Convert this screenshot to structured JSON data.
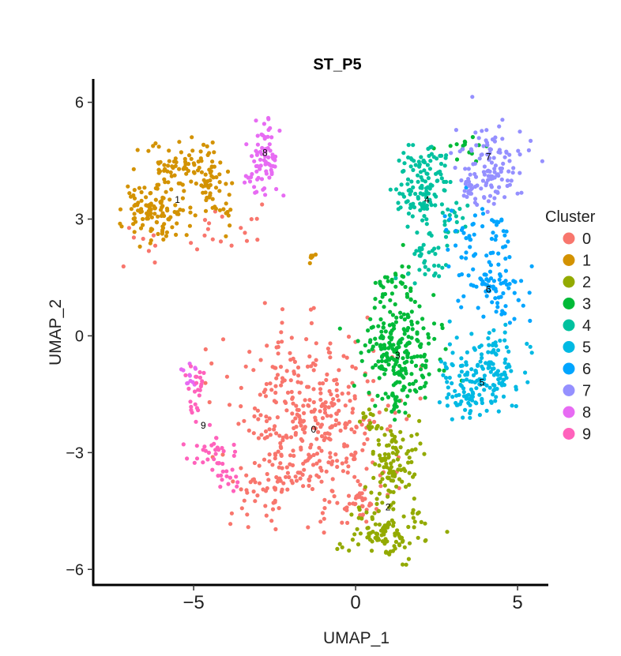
{
  "chart_data": {
    "type": "scatter",
    "title": "ST_P5",
    "xlabel": "UMAP_1",
    "ylabel": "UMAP_2",
    "xlim": [
      -8.1,
      5.9
    ],
    "ylim": [
      -6.4,
      6.6
    ],
    "x_ticks": [
      -5,
      0,
      5
    ],
    "y_ticks": [
      -6,
      -3,
      0,
      3,
      6
    ],
    "x_tick_labels": [
      "−5",
      "0",
      "5"
    ],
    "y_tick_labels": [
      "−6",
      "−3",
      "0",
      "3",
      "6"
    ],
    "grid": false,
    "legend": {
      "title": "Cluster",
      "position": "right"
    },
    "series": [
      {
        "name": "0",
        "color": "#F8766D",
        "label_pos": [
          -1.3,
          -2.4
        ],
        "regions": [
          {
            "cx": -1.5,
            "cy": -2.2,
            "sx": 1.2,
            "sy": 1.1,
            "n": 380
          },
          {
            "cx": 0.2,
            "cy": -4.3,
            "sx": 0.5,
            "sy": 0.3,
            "n": 40
          },
          {
            "cx": -2.8,
            "cy": -4.0,
            "sx": 0.5,
            "sy": 0.4,
            "n": 40
          },
          {
            "cx": -3.8,
            "cy": 2.7,
            "sx": 0.8,
            "sy": 0.3,
            "n": 18
          },
          {
            "cx": -6.5,
            "cy": 2.3,
            "sx": 0.3,
            "sy": 0.3,
            "n": 8
          }
        ]
      },
      {
        "name": "1",
        "color": "#D39200",
        "label_pos": [
          -5.5,
          3.5
        ],
        "regions": [
          {
            "cx": -6.5,
            "cy": 3.3,
            "sx": 0.4,
            "sy": 0.35,
            "n": 70
          },
          {
            "cx": -5.5,
            "cy": 4.3,
            "sx": 0.6,
            "sy": 0.35,
            "n": 70
          },
          {
            "cx": -4.5,
            "cy": 3.8,
            "sx": 0.4,
            "sy": 0.5,
            "n": 60
          },
          {
            "cx": -5.8,
            "cy": 3.0,
            "sx": 0.4,
            "sy": 0.3,
            "n": 35
          },
          {
            "cx": -1.2,
            "cy": 2.0,
            "sx": 0.15,
            "sy": 0.08,
            "n": 8
          }
        ]
      },
      {
        "name": "2",
        "color": "#93AA00",
        "label_pos": [
          1.0,
          -4.4
        ],
        "regions": [
          {
            "cx": 1.1,
            "cy": -3.3,
            "sx": 0.35,
            "sy": 0.55,
            "n": 100
          },
          {
            "cx": 0.9,
            "cy": -5.0,
            "sx": 0.6,
            "sy": 0.4,
            "n": 110
          },
          {
            "cx": 0.4,
            "cy": -2.2,
            "sx": 0.2,
            "sy": 0.3,
            "n": 18
          }
        ]
      },
      {
        "name": "3",
        "color": "#00BA38",
        "label_pos": [
          1.3,
          -0.5
        ],
        "regions": [
          {
            "cx": 1.4,
            "cy": -0.4,
            "sx": 0.6,
            "sy": 0.55,
            "n": 200
          },
          {
            "cx": 1.3,
            "cy": 1.2,
            "sx": 0.35,
            "sy": 0.4,
            "n": 40
          },
          {
            "cx": 1.3,
            "cy": -1.6,
            "sx": 0.25,
            "sy": 0.3,
            "n": 30
          },
          {
            "cx": 3.3,
            "cy": 4.9,
            "sx": 0.4,
            "sy": 0.2,
            "n": 15
          }
        ]
      },
      {
        "name": "4",
        "color": "#00C19F",
        "label_pos": [
          2.2,
          3.5
        ],
        "regions": [
          {
            "cx": 2.0,
            "cy": 3.6,
            "sx": 0.4,
            "sy": 0.35,
            "n": 80
          },
          {
            "cx": 2.2,
            "cy": 4.4,
            "sx": 0.35,
            "sy": 0.3,
            "n": 50
          },
          {
            "cx": 2.2,
            "cy": 2.0,
            "sx": 0.35,
            "sy": 0.4,
            "n": 40
          },
          {
            "cx": 3.0,
            "cy": 3.0,
            "sx": 0.25,
            "sy": 0.3,
            "n": 20
          }
        ]
      },
      {
        "name": "5",
        "color": "#00B9E3",
        "label_pos": [
          3.9,
          -1.2
        ],
        "regions": [
          {
            "cx": 4.0,
            "cy": -1.1,
            "sx": 0.7,
            "sy": 0.45,
            "n": 130
          },
          {
            "cx": 3.3,
            "cy": -1.5,
            "sx": 0.4,
            "sy": 0.3,
            "n": 30
          },
          {
            "cx": 4.5,
            "cy": -0.3,
            "sx": 0.4,
            "sy": 0.25,
            "n": 20
          }
        ]
      },
      {
        "name": "6",
        "color": "#00A5FF",
        "label_pos": [
          4.1,
          1.2
        ],
        "regions": [
          {
            "cx": 4.2,
            "cy": 1.2,
            "sx": 0.5,
            "sy": 0.45,
            "n": 80
          },
          {
            "cx": 3.5,
            "cy": 2.7,
            "sx": 0.4,
            "sy": 0.4,
            "n": 30
          },
          {
            "cx": 4.4,
            "cy": 2.6,
            "sx": 0.2,
            "sy": 0.5,
            "n": 20
          }
        ]
      },
      {
        "name": "7",
        "color": "#9590FF",
        "label_pos": [
          4.1,
          4.6
        ],
        "regions": [
          {
            "cx": 4.2,
            "cy": 4.4,
            "sx": 0.5,
            "sy": 0.5,
            "n": 110
          },
          {
            "cx": 3.6,
            "cy": 3.7,
            "sx": 0.25,
            "sy": 0.25,
            "n": 20
          }
        ]
      },
      {
        "name": "8",
        "color": "#E76BF3",
        "label_pos": [
          -2.8,
          4.7
        ],
        "regions": [
          {
            "cx": -2.8,
            "cy": 4.6,
            "sx": 0.22,
            "sy": 0.5,
            "n": 65
          },
          {
            "cx": -3.2,
            "cy": 3.9,
            "sx": 0.2,
            "sy": 0.2,
            "n": 10
          },
          {
            "cx": -5.1,
            "cy": -1.0,
            "sx": 0.15,
            "sy": 0.2,
            "n": 12
          }
        ]
      },
      {
        "name": "9",
        "color": "#FF62BC",
        "label_pos": [
          -4.7,
          -2.3
        ],
        "regions": [
          {
            "cx": -4.9,
            "cy": -1.5,
            "sx": 0.15,
            "sy": 0.5,
            "n": 25
          },
          {
            "cx": -4.4,
            "cy": -3.0,
            "sx": 0.4,
            "sy": 0.2,
            "n": 30
          },
          {
            "cx": -3.9,
            "cy": -3.6,
            "sx": 0.2,
            "sy": 0.2,
            "n": 15
          }
        ]
      }
    ]
  }
}
